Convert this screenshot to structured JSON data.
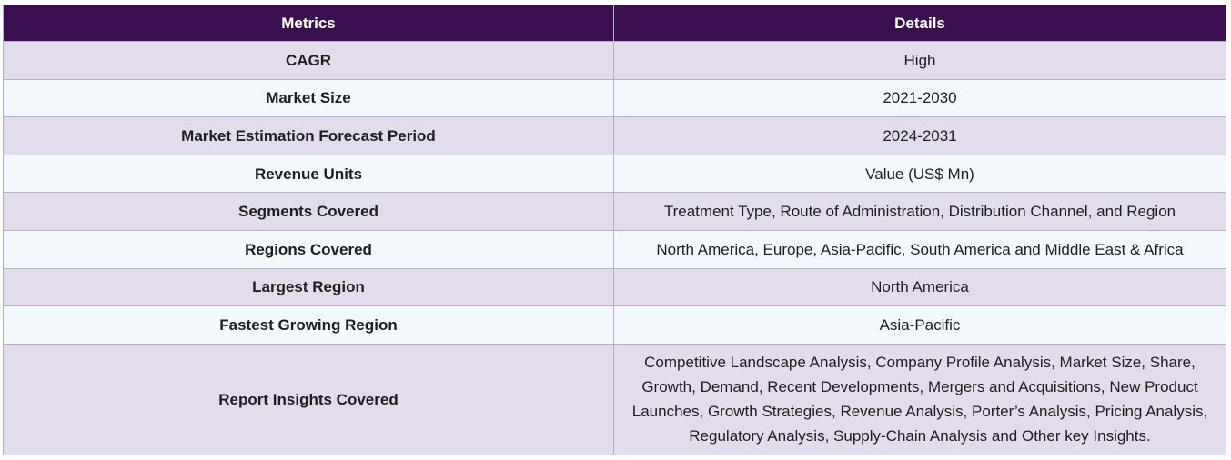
{
  "header": {
    "metrics_label": "Metrics",
    "details_label": "Details"
  },
  "rows": [
    {
      "metric": "CAGR",
      "detail": "High"
    },
    {
      "metric": "Market Size",
      "detail": "2021-2030"
    },
    {
      "metric": "Market Estimation Forecast Period",
      "detail": "2024-2031"
    },
    {
      "metric": "Revenue Units",
      "detail": "Value (US$ Mn)"
    },
    {
      "metric": "Segments Covered",
      "detail": "Treatment Type, Route of Administration, Distribution Channel, and Region"
    },
    {
      "metric": "Regions Covered",
      "detail": "North America, Europe, Asia-Pacific, South America and Middle East & Africa"
    },
    {
      "metric": "Largest Region",
      "detail": "North America"
    },
    {
      "metric": "Fastest Growing Region",
      "detail": "Asia-Pacific"
    },
    {
      "metric": "Report Insights Covered",
      "detail": "Competitive Landscape Analysis, Company Profile Analysis, Market Size, Share, Growth, Demand, Recent Developments, Mergers and Acquisitions, New Product Launches, Growth Strategies, Revenue Analysis, Porter’s Analysis, Pricing Analysis, Regulatory Analysis, Supply-Chain Analysis and Other key Insights."
    }
  ]
}
